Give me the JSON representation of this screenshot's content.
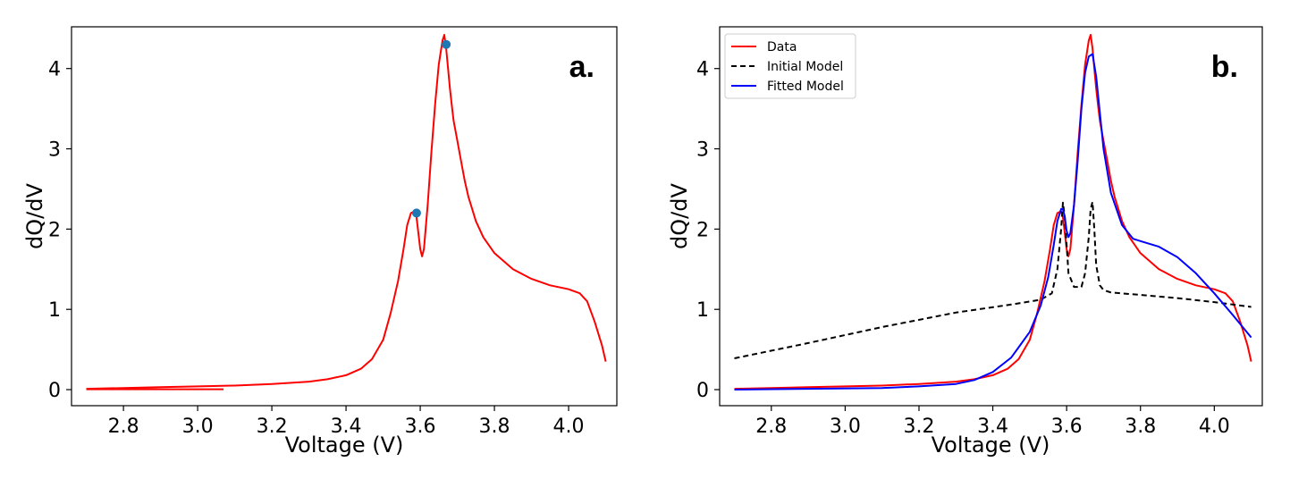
{
  "chart_data": [
    {
      "type": "line",
      "panel_label": "a.",
      "xlabel": "Voltage (V)",
      "ylabel": "dQ/dV",
      "xlim": [
        2.66,
        4.13
      ],
      "ylim": [
        -0.2,
        4.52
      ],
      "xticks": [
        "2.8",
        "3.0",
        "3.2",
        "3.4",
        "3.6",
        "3.8",
        "4.0"
      ],
      "yticks": [
        "0",
        "1",
        "2",
        "3",
        "4"
      ],
      "grid": false,
      "series": [
        {
          "color": "#ff0000",
          "style": "solid",
          "x": [
            2.7,
            2.8,
            2.9,
            3.0,
            3.1,
            3.2,
            3.3,
            3.35,
            3.4,
            3.44,
            3.47,
            3.5,
            3.52,
            3.54,
            3.555,
            3.565,
            3.575,
            3.585,
            3.59,
            3.595,
            3.6,
            3.605,
            3.61,
            3.62,
            3.63,
            3.64,
            3.65,
            3.66,
            3.665,
            3.67,
            3.675,
            3.68,
            3.685,
            3.69,
            3.7,
            3.71,
            3.72,
            3.73,
            3.74,
            3.75,
            3.77,
            3.8,
            3.85,
            3.9,
            3.95,
            4.0,
            4.03,
            4.05,
            4.07,
            4.09,
            4.1
          ],
          "y": [
            0.01,
            0.02,
            0.03,
            0.04,
            0.05,
            0.07,
            0.1,
            0.13,
            0.18,
            0.26,
            0.38,
            0.62,
            0.95,
            1.35,
            1.75,
            2.05,
            2.2,
            2.22,
            2.15,
            1.95,
            1.75,
            1.66,
            1.75,
            2.3,
            2.95,
            3.55,
            4.05,
            4.35,
            4.42,
            4.25,
            4.0,
            3.75,
            3.55,
            3.35,
            3.1,
            2.85,
            2.6,
            2.4,
            2.25,
            2.1,
            1.9,
            1.7,
            1.5,
            1.38,
            1.3,
            1.25,
            1.2,
            1.1,
            0.85,
            0.55,
            0.35
          ]
        },
        {
          "color": "#ff0000",
          "style": "solid",
          "x": [
            2.7,
            2.8,
            2.9,
            3.0,
            3.07
          ],
          "y": [
            0.005,
            0.005,
            0.005,
            0.005,
            0.005
          ]
        }
      ],
      "markers": [
        {
          "x": 3.59,
          "y": 2.2,
          "color": "#1f77b4"
        },
        {
          "x": 3.67,
          "y": 4.3,
          "color": "#1f77b4"
        }
      ]
    },
    {
      "type": "line",
      "panel_label": "b.",
      "xlabel": "Voltage (V)",
      "ylabel": "dQ/dV",
      "xlim": [
        2.66,
        4.13
      ],
      "ylim": [
        -0.2,
        4.52
      ],
      "xticks": [
        "2.8",
        "3.0",
        "3.2",
        "3.4",
        "3.6",
        "3.8",
        "4.0"
      ],
      "yticks": [
        "0",
        "1",
        "2",
        "3",
        "4"
      ],
      "grid": false,
      "legend_position": "top-left",
      "series": [
        {
          "name": "Data",
          "color": "#ff0000",
          "style": "solid",
          "x": [
            2.7,
            2.8,
            2.9,
            3.0,
            3.1,
            3.2,
            3.3,
            3.35,
            3.4,
            3.44,
            3.47,
            3.5,
            3.52,
            3.54,
            3.555,
            3.565,
            3.575,
            3.585,
            3.59,
            3.595,
            3.6,
            3.605,
            3.61,
            3.62,
            3.63,
            3.64,
            3.65,
            3.66,
            3.665,
            3.67,
            3.675,
            3.68,
            3.685,
            3.69,
            3.7,
            3.71,
            3.72,
            3.73,
            3.74,
            3.75,
            3.77,
            3.8,
            3.85,
            3.9,
            3.95,
            4.0,
            4.03,
            4.05,
            4.07,
            4.09,
            4.1
          ],
          "y": [
            0.01,
            0.02,
            0.03,
            0.04,
            0.05,
            0.07,
            0.1,
            0.13,
            0.18,
            0.26,
            0.38,
            0.62,
            0.95,
            1.35,
            1.75,
            2.05,
            2.2,
            2.22,
            2.15,
            1.95,
            1.75,
            1.66,
            1.75,
            2.3,
            2.95,
            3.55,
            4.05,
            4.35,
            4.42,
            4.25,
            4.0,
            3.75,
            3.55,
            3.35,
            3.1,
            2.85,
            2.6,
            2.4,
            2.25,
            2.1,
            1.9,
            1.7,
            1.5,
            1.38,
            1.3,
            1.25,
            1.2,
            1.1,
            0.85,
            0.55,
            0.35
          ]
        },
        {
          "name": "Initial Model",
          "color": "#000000",
          "style": "dashed",
          "x": [
            2.7,
            2.9,
            3.1,
            3.3,
            3.45,
            3.53,
            3.56,
            3.575,
            3.585,
            3.59,
            3.595,
            3.605,
            3.62,
            3.64,
            3.65,
            3.66,
            3.665,
            3.67,
            3.675,
            3.68,
            3.69,
            3.7,
            3.72,
            3.8,
            3.9,
            4.0,
            4.1
          ],
          "y": [
            0.39,
            0.58,
            0.78,
            0.96,
            1.06,
            1.12,
            1.2,
            1.5,
            2.0,
            2.33,
            2.15,
            1.45,
            1.28,
            1.28,
            1.45,
            1.9,
            2.25,
            2.34,
            2.0,
            1.55,
            1.3,
            1.24,
            1.21,
            1.18,
            1.14,
            1.09,
            1.03
          ]
        },
        {
          "name": "Fitted Model",
          "color": "#0000ff",
          "style": "solid",
          "x": [
            2.7,
            2.9,
            3.1,
            3.2,
            3.3,
            3.35,
            3.4,
            3.45,
            3.5,
            3.53,
            3.55,
            3.565,
            3.575,
            3.585,
            3.59,
            3.595,
            3.6,
            3.605,
            3.61,
            3.62,
            3.63,
            3.64,
            3.65,
            3.66,
            3.67,
            3.68,
            3.69,
            3.7,
            3.72,
            3.75,
            3.78,
            3.8,
            3.85,
            3.9,
            3.95,
            4.0,
            4.05,
            4.1
          ],
          "y": [
            0.0,
            0.01,
            0.02,
            0.04,
            0.07,
            0.12,
            0.22,
            0.4,
            0.72,
            1.05,
            1.4,
            1.8,
            2.1,
            2.25,
            2.25,
            2.15,
            1.98,
            1.9,
            1.95,
            2.3,
            2.85,
            3.5,
            3.95,
            4.15,
            4.18,
            3.9,
            3.45,
            3.0,
            2.45,
            2.05,
            1.88,
            1.85,
            1.78,
            1.65,
            1.45,
            1.2,
            0.93,
            0.65
          ]
        }
      ]
    }
  ]
}
